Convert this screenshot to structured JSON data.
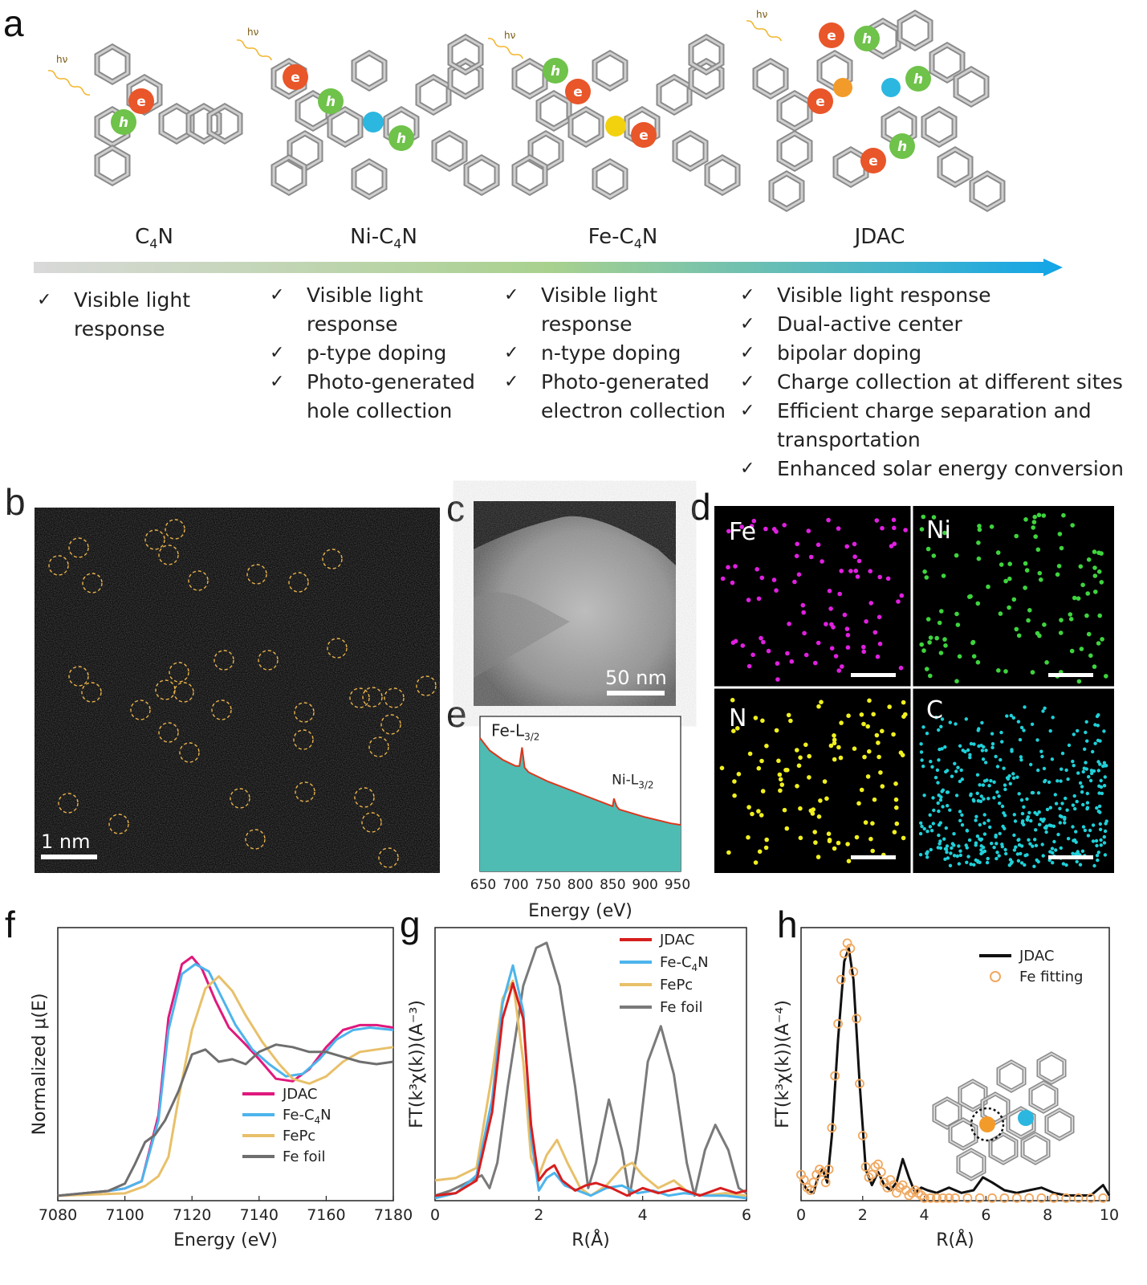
{
  "panel_labels": [
    "a",
    "b",
    "c",
    "d",
    "e",
    "f",
    "g",
    "h"
  ],
  "panel_a": {
    "photon_label": "hν",
    "electron": "e",
    "hole": "h",
    "materials": [
      {
        "name": "C",
        "sub": "4",
        "rest": "N"
      },
      {
        "name": "Ni-C",
        "sub": "4",
        "rest": "N"
      },
      {
        "name": "Fe-C",
        "sub": "4",
        "rest": "N"
      },
      {
        "name": "JDAC",
        "sub": "",
        "rest": ""
      }
    ],
    "check": "✓",
    "features": [
      [
        "Visible light\nresponse"
      ],
      [
        "Visible light\nresponse",
        "p-type doping",
        "Photo-generated\nhole collection"
      ],
      [
        "Visible light\nresponse",
        "n-type doping",
        "Photo-generated\nelectron collection"
      ],
      [
        "Visible light response",
        "Dual-active center",
        "bipolar doping",
        "Charge collection at different sites",
        "Efficient charge separation and\ntransportation",
        "Enhanced solar energy conversion"
      ]
    ],
    "colors": {
      "arrow_start": "#d9d9d9",
      "arrow_mid": "#a9d18e",
      "arrow_end": "#12a5e8",
      "electron": "#e8562a",
      "hole": "#6fc24a",
      "ni": "#2bb7e0",
      "fe": "#f2c40f",
      "fe_orange": "#f29b2a"
    }
  },
  "panel_b": {
    "scale_bar": "1 nm"
  },
  "panel_c": {
    "scale_bar": "50 nm"
  },
  "panel_d": {
    "maps": [
      {
        "element": "Fe",
        "color": "#e020e0"
      },
      {
        "element": "Ni",
        "color": "#3ed43e"
      },
      {
        "element": "N",
        "color": "#f0f020"
      },
      {
        "element": "C",
        "color": "#20d0d8"
      }
    ]
  },
  "chart_data": [
    {
      "panel": "e",
      "type": "area",
      "xlabel": "Energy (eV)",
      "ylabel": "",
      "xlim": [
        645,
        955
      ],
      "xticks": [
        650,
        700,
        750,
        800,
        850,
        900,
        950
      ],
      "x": [
        645,
        660,
        680,
        700,
        706,
        710,
        714,
        720,
        750,
        800,
        850,
        852,
        856,
        860,
        900,
        940,
        955
      ],
      "y": [
        0.86,
        0.78,
        0.72,
        0.68,
        0.68,
        0.8,
        0.67,
        0.64,
        0.58,
        0.5,
        0.42,
        0.47,
        0.42,
        0.4,
        0.35,
        0.31,
        0.3
      ],
      "annotations": [
        {
          "text": "Fe-L",
          "sub": "3/2",
          "x": 712
        },
        {
          "text": "Ni-L",
          "sub": "3/2",
          "x": 856
        }
      ],
      "fill": "#4fbcb4",
      "line": "#d9381e"
    },
    {
      "panel": "f",
      "type": "line",
      "xlabel": "Energy (eV)",
      "ylabel": "Normalized μ(E)",
      "xlim": [
        7080,
        7180
      ],
      "xticks": [
        7080,
        7100,
        7120,
        7140,
        7160,
        7180
      ],
      "legend": [
        {
          "name": "JDAC",
          "color": "#e0197d"
        },
        {
          "name": "Fe-C",
          "sub": "4",
          "rest": "N",
          "color": "#4db4ec"
        },
        {
          "name": "FePc",
          "color": "#e8c06a"
        },
        {
          "name": "Fe foil",
          "color": "#6e6e6e"
        }
      ],
      "series": [
        {
          "name": "JDAC",
          "color": "#e0197d",
          "x": [
            7080,
            7095,
            7100,
            7105,
            7110,
            7113,
            7117,
            7120,
            7123,
            7127,
            7131,
            7136,
            7140,
            7145,
            7150,
            7155,
            7160,
            7165,
            7170,
            7175,
            7180
          ],
          "y": [
            0.02,
            0.04,
            0.05,
            0.08,
            0.35,
            0.75,
            0.97,
            1.0,
            0.95,
            0.82,
            0.71,
            0.64,
            0.58,
            0.5,
            0.49,
            0.54,
            0.63,
            0.7,
            0.72,
            0.72,
            0.71
          ]
        },
        {
          "name": "Fe-C4N",
          "color": "#4db4ec",
          "x": [
            7080,
            7095,
            7100,
            7105,
            7110,
            7113,
            7117,
            7121,
            7125,
            7129,
            7133,
            7138,
            7143,
            7148,
            7153,
            7158,
            7163,
            7168,
            7173,
            7180
          ],
          "y": [
            0.02,
            0.04,
            0.05,
            0.08,
            0.33,
            0.7,
            0.93,
            0.97,
            0.94,
            0.83,
            0.72,
            0.62,
            0.56,
            0.51,
            0.52,
            0.58,
            0.66,
            0.7,
            0.71,
            0.7
          ]
        },
        {
          "name": "FePc",
          "color": "#e8c06a",
          "x": [
            7080,
            7100,
            7106,
            7110,
            7113,
            7116,
            7120,
            7124,
            7128,
            7132,
            7136,
            7141,
            7146,
            7150,
            7155,
            7160,
            7165,
            7170,
            7180
          ],
          "y": [
            0.02,
            0.03,
            0.06,
            0.1,
            0.18,
            0.42,
            0.7,
            0.87,
            0.92,
            0.86,
            0.76,
            0.65,
            0.56,
            0.5,
            0.48,
            0.51,
            0.57,
            0.61,
            0.63
          ]
        },
        {
          "name": "Fe foil",
          "color": "#6e6e6e",
          "x": [
            7080,
            7095,
            7100,
            7103,
            7106,
            7109,
            7112,
            7116,
            7120,
            7124,
            7128,
            7132,
            7136,
            7140,
            7145,
            7150,
            7155,
            7160,
            7165,
            7170,
            7175,
            7180
          ],
          "y": [
            0.02,
            0.04,
            0.07,
            0.15,
            0.24,
            0.27,
            0.33,
            0.45,
            0.6,
            0.62,
            0.57,
            0.58,
            0.56,
            0.61,
            0.64,
            0.63,
            0.61,
            0.61,
            0.59,
            0.57,
            0.56,
            0.57
          ]
        }
      ]
    },
    {
      "panel": "g",
      "type": "line",
      "xlabel": "R(Å)",
      "ylabel": "FT(k³χ(k))(A⁻³)",
      "xlim": [
        0,
        6
      ],
      "xticks": [
        0,
        2,
        4,
        6
      ],
      "legend": [
        {
          "name": "JDAC",
          "color": "#d71e1e"
        },
        {
          "name": "Fe-C",
          "sub": "4",
          "rest": "N",
          "color": "#4db4ec"
        },
        {
          "name": "FePc",
          "color": "#e8c06a"
        },
        {
          "name": "Fe foil",
          "color": "#7a7a7a"
        }
      ],
      "series": [
        {
          "name": "Fe foil",
          "color": "#7a7a7a",
          "x": [
            0,
            0.3,
            0.6,
            0.9,
            1.05,
            1.2,
            1.4,
            1.7,
            1.95,
            2.15,
            2.4,
            2.7,
            2.95,
            3.1,
            3.35,
            3.6,
            3.75,
            3.9,
            4.1,
            4.35,
            4.6,
            4.85,
            5.0,
            5.2,
            5.4,
            5.65,
            5.85,
            6.0
          ],
          "y": [
            0.02,
            0.04,
            0.07,
            0.1,
            0.05,
            0.15,
            0.45,
            0.85,
            1.0,
            1.02,
            0.85,
            0.45,
            0.05,
            0.15,
            0.4,
            0.2,
            0.02,
            0.2,
            0.55,
            0.69,
            0.5,
            0.15,
            0.02,
            0.2,
            0.3,
            0.2,
            0.05,
            0.03
          ]
        },
        {
          "name": "FePc",
          "color": "#e8c06a",
          "x": [
            0,
            0.4,
            0.8,
            1.1,
            1.3,
            1.5,
            1.7,
            1.85,
            2.0,
            2.15,
            2.35,
            2.55,
            2.8,
            3.0,
            3.3,
            3.6,
            3.8,
            4.0,
            4.3,
            4.6,
            4.9,
            5.2,
            5.6,
            6.0
          ],
          "y": [
            0.08,
            0.09,
            0.13,
            0.5,
            0.8,
            0.87,
            0.55,
            0.17,
            0.1,
            0.18,
            0.24,
            0.15,
            0.05,
            0.02,
            0.06,
            0.13,
            0.15,
            0.1,
            0.05,
            0.08,
            0.03,
            0.02,
            0.03,
            0.02
          ]
        },
        {
          "name": "Fe-C4N",
          "color": "#4db4ec",
          "x": [
            0,
            0.4,
            0.8,
            1.1,
            1.3,
            1.5,
            1.7,
            1.85,
            2.0,
            2.15,
            2.3,
            2.5,
            2.75,
            3.0,
            3.3,
            3.6,
            3.9,
            4.2,
            4.5,
            4.8,
            5.2,
            5.6,
            6.0
          ],
          "y": [
            0.01,
            0.03,
            0.1,
            0.4,
            0.78,
            0.93,
            0.75,
            0.25,
            0.04,
            0.09,
            0.11,
            0.06,
            0.04,
            0.02,
            0.05,
            0.06,
            0.03,
            0.04,
            0.02,
            0.03,
            0.02,
            0.02,
            0.01
          ]
        },
        {
          "name": "JDAC",
          "color": "#d71e1e",
          "x": [
            0,
            0.4,
            0.8,
            1.1,
            1.3,
            1.5,
            1.7,
            1.85,
            2.0,
            2.15,
            2.3,
            2.45,
            2.7,
            2.9,
            3.1,
            3.4,
            3.7,
            4.0,
            4.3,
            4.7,
            5.1,
            5.5,
            5.8,
            6.0
          ],
          "y": [
            0.02,
            0.03,
            0.08,
            0.35,
            0.72,
            0.86,
            0.72,
            0.3,
            0.08,
            0.12,
            0.14,
            0.08,
            0.04,
            0.06,
            0.07,
            0.05,
            0.02,
            0.05,
            0.03,
            0.05,
            0.02,
            0.05,
            0.03,
            0.04
          ]
        }
      ]
    },
    {
      "panel": "h",
      "type": "line",
      "xlabel": "R(Å)",
      "ylabel": "FT(k³χ(k))(A⁻⁴)",
      "xlim": [
        0,
        10
      ],
      "xticks": [
        0,
        2,
        4,
        6,
        8,
        10
      ],
      "legend": [
        {
          "name": "JDAC",
          "color": "#111111"
        },
        {
          "name": "Fe fitting",
          "color": "#f0a860"
        }
      ],
      "series": [
        {
          "name": "JDAC",
          "color": "#111111",
          "x": [
            0,
            0.2,
            0.4,
            0.55,
            0.7,
            0.85,
            1.0,
            1.2,
            1.4,
            1.55,
            1.7,
            1.9,
            2.1,
            2.3,
            2.5,
            2.7,
            2.9,
            3.1,
            3.3,
            3.5,
            3.7,
            3.9,
            4.1,
            4.4,
            4.8,
            5.2,
            5.6,
            5.9,
            6.2,
            6.6,
            7.0,
            7.4,
            7.8,
            8.2,
            8.6,
            9.0,
            9.4,
            9.8,
            10.0
          ],
          "y": [
            0.08,
            0.04,
            0.03,
            0.09,
            0.12,
            0.07,
            0.25,
            0.62,
            0.92,
            0.97,
            0.85,
            0.45,
            0.12,
            0.06,
            0.11,
            0.06,
            0.04,
            0.07,
            0.16,
            0.09,
            0.03,
            0.05,
            0.04,
            0.03,
            0.05,
            0.03,
            0.04,
            0.09,
            0.07,
            0.04,
            0.03,
            0.04,
            0.05,
            0.03,
            0.02,
            0.02,
            0.02,
            0.06,
            0.02
          ]
        },
        {
          "name": "Fe fitting",
          "color": "#f0a860",
          "points": true,
          "x": [
            0,
            0.1,
            0.2,
            0.3,
            0.4,
            0.5,
            0.6,
            0.7,
            0.8,
            0.9,
            1.0,
            1.1,
            1.2,
            1.3,
            1.4,
            1.5,
            1.6,
            1.7,
            1.8,
            1.9,
            2.0,
            2.1,
            2.2,
            2.3,
            2.4,
            2.5,
            2.6,
            2.7,
            2.8,
            2.9,
            3.0,
            3.1,
            3.2,
            3.3,
            3.4,
            3.5,
            3.6,
            3.7,
            3.8,
            3.9,
            4.0,
            4.2,
            4.4,
            4.6,
            4.8,
            5.0,
            5.4,
            5.8,
            6.2,
            6.6,
            7.0,
            7.4,
            7.8,
            8.2,
            8.6,
            9.0,
            9.4,
            9.8
          ],
          "y": [
            0.1,
            0.08,
            0.05,
            0.04,
            0.07,
            0.1,
            0.12,
            0.11,
            0.07,
            0.12,
            0.28,
            0.48,
            0.68,
            0.85,
            0.95,
            0.99,
            0.97,
            0.88,
            0.7,
            0.45,
            0.25,
            0.13,
            0.09,
            0.1,
            0.13,
            0.14,
            0.11,
            0.07,
            0.05,
            0.08,
            0.06,
            0.03,
            0.05,
            0.06,
            0.04,
            0.02,
            0.03,
            0.04,
            0.03,
            0.02,
            0.01,
            0.01,
            0.01,
            0.01,
            0.01,
            0.01,
            0.01,
            0.01,
            0.01,
            0.01,
            0.01,
            0.01,
            0.01,
            0.01,
            0.01,
            0.01,
            0.01,
            0.01
          ]
        }
      ]
    }
  ]
}
